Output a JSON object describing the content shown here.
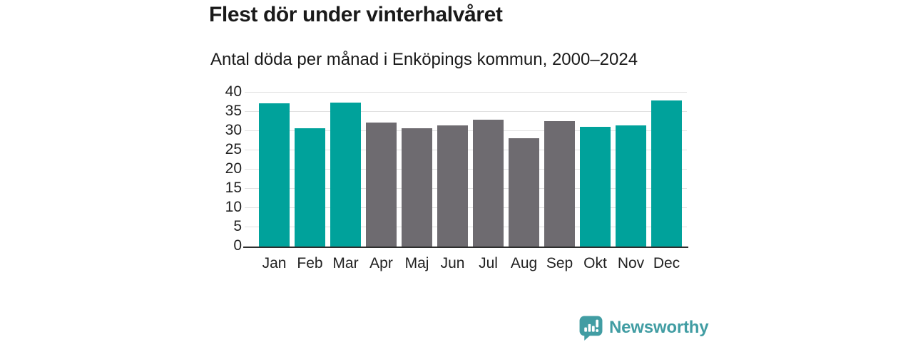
{
  "header": {
    "title": "Flest dör under vinterhalvåret",
    "subtitle": "Antal döda per månad i Enköpings kommun, 2000–2024"
  },
  "chart_data": {
    "type": "bar",
    "title": "Flest dör under vinterhalvåret",
    "subtitle": "Antal döda per månad i Enköpings kommun, 2000–2024",
    "categories": [
      "Jan",
      "Feb",
      "Mar",
      "Apr",
      "Maj",
      "Jun",
      "Jul",
      "Aug",
      "Sep",
      "Okt",
      "Nov",
      "Dec"
    ],
    "values": [
      37.3,
      30.7,
      37.5,
      32.3,
      30.7,
      31.5,
      33.0,
      28.1,
      32.6,
      31.1,
      31.4,
      38.0
    ],
    "bar_roles": [
      "highlight",
      "highlight",
      "highlight",
      "base",
      "base",
      "base",
      "base",
      "base",
      "base",
      "highlight",
      "highlight",
      "highlight"
    ],
    "xlabel": "",
    "ylabel": "",
    "ylim": [
      0,
      40
    ],
    "yticks": [
      0,
      5,
      10,
      15,
      20,
      25,
      30,
      35,
      40
    ],
    "grid": true,
    "legend_position": "none",
    "colors": {
      "highlight": "#00a29b",
      "base": "#6e6b70",
      "gridline": "#e1e1e1",
      "axis_line": "#2e2e2e",
      "tick_text": "#222222"
    }
  },
  "footer": {
    "brand": "Newsworthy",
    "logo_icon": "bar-chart-speech-bubble-icon",
    "brand_color": "#419da3"
  }
}
